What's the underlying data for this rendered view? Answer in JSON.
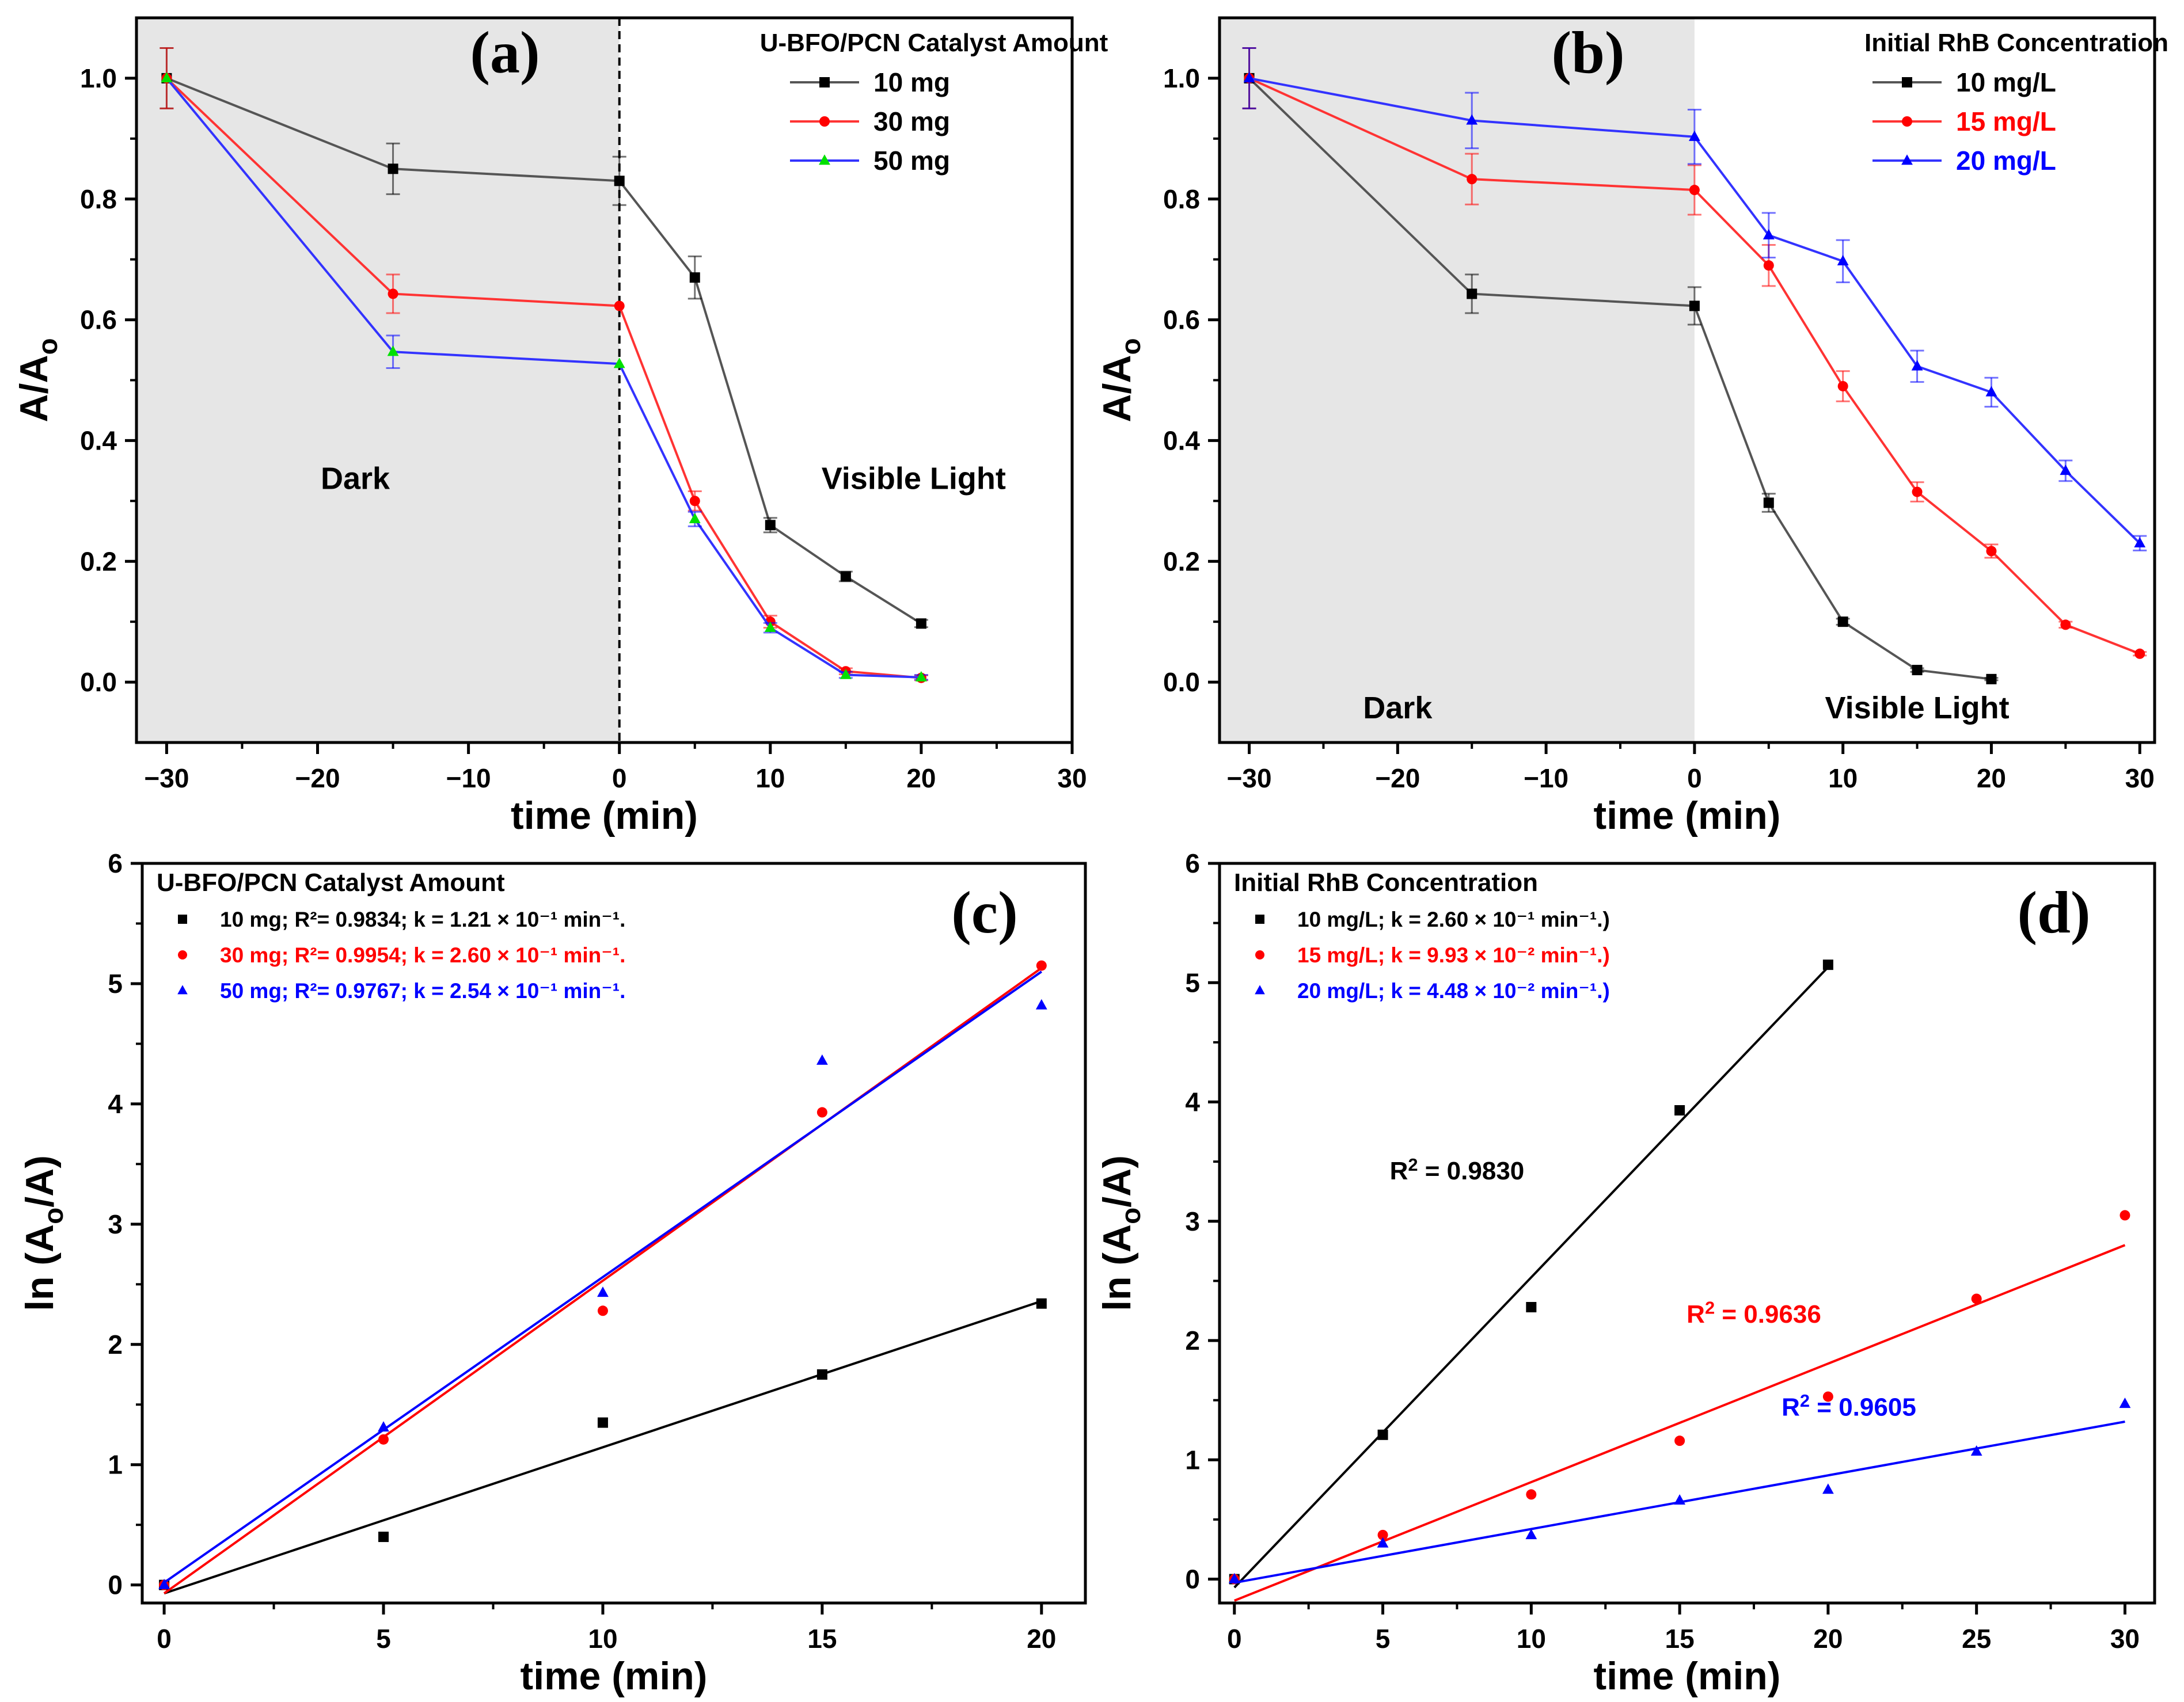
{
  "figure": {
    "colors": {
      "black": "#000000",
      "red": "#ff0000",
      "blue": "#0000ff",
      "green": "#00e000",
      "dark": "#333333",
      "shade": "#e6e6e6"
    }
  },
  "chart_data": [
    {
      "id": "a",
      "type": "line",
      "panel_label": "(a)",
      "xlabel": "time (min)",
      "ylabel": "A/A",
      "ylabel_sub": "o",
      "xlim": [
        -32,
        30
      ],
      "ylim": [
        -0.1,
        1.1
      ],
      "xticks": [
        -30,
        -20,
        -10,
        0,
        10,
        20,
        30
      ],
      "yticks": [
        0.0,
        0.2,
        0.4,
        0.6,
        0.8,
        1.0
      ],
      "xtick_labels": [
        "−30",
        "−20",
        "−10",
        "0",
        "10",
        "20",
        "30"
      ],
      "ytick_labels": [
        "0.0",
        "0.2",
        "0.4",
        "0.6",
        "0.8",
        "1.0"
      ],
      "dark_region": [
        -32,
        0
      ],
      "divider_x": 0,
      "annotations": [
        {
          "text": "Dark",
          "x": -17.5,
          "y": 0.32
        },
        {
          "text": "Visible Light",
          "x": 19.5,
          "y": 0.32
        }
      ],
      "legend": {
        "title": "U-BFO/PCN Catalyst Amount",
        "position": "top-right"
      },
      "series": [
        {
          "name": "10 mg",
          "color": "#000000",
          "line_dark": "#555555",
          "marker": "square",
          "x": [
            -30,
            -15,
            0,
            5,
            10,
            15,
            20
          ],
          "y": [
            1.0,
            0.85,
            0.83,
            0.67,
            0.26,
            0.175,
            0.097
          ],
          "err": [
            0.05,
            0.042,
            0.04,
            0.035,
            0.012,
            0.008,
            0.006
          ]
        },
        {
          "name": "30 mg",
          "color": "#ff0000",
          "line_dark": "#ff3333",
          "marker": "circle",
          "x": [
            -30,
            -15,
            0,
            5,
            10,
            15,
            20
          ],
          "y": [
            1.0,
            0.643,
            0.623,
            0.3,
            0.1,
            0.018,
            0.007
          ],
          "err": [
            0.05,
            0.032,
            0.0,
            0.016,
            0.01,
            0.005,
            0.004
          ]
        },
        {
          "name": "50 mg",
          "color": "#0000ff",
          "line_dark": "#3333ff",
          "marker": "triangle",
          "marker_color": "#00e000",
          "x": [
            -30,
            -15,
            0,
            5,
            10,
            15,
            20
          ],
          "y": [
            1.0,
            0.547,
            0.527,
            0.27,
            0.09,
            0.012,
            0.008
          ],
          "err": [
            0.0,
            0.027,
            0.0,
            0.012,
            0.008,
            0.005,
            0.004
          ]
        }
      ]
    },
    {
      "id": "b",
      "type": "line",
      "panel_label": "(b)",
      "xlabel": "time (min)",
      "ylabel": "A/A",
      "ylabel_sub": "o",
      "xlim": [
        -32,
        31
      ],
      "ylim": [
        -0.1,
        1.1
      ],
      "xticks": [
        -30,
        -20,
        -10,
        0,
        10,
        20,
        30
      ],
      "yticks": [
        0.0,
        0.2,
        0.4,
        0.6,
        0.8,
        1.0
      ],
      "xtick_labels": [
        "−30",
        "−20",
        "−10",
        "0",
        "10",
        "20",
        "30"
      ],
      "ytick_labels": [
        "0.0",
        "0.2",
        "0.4",
        "0.6",
        "0.8",
        "1.0"
      ],
      "dark_region": [
        -32,
        0
      ],
      "annotations": [
        {
          "text": "Dark",
          "x": -20,
          "y": -0.06
        },
        {
          "text": "Visible Light",
          "x": 15,
          "y": -0.06
        }
      ],
      "legend": {
        "title": "Initial RhB Concentration",
        "position": "top-right"
      },
      "series": [
        {
          "name": "10 mg/L",
          "color": "#000000",
          "line_dark": "#555555",
          "marker": "square",
          "x": [
            -30,
            -15,
            0,
            5,
            10,
            15,
            20
          ],
          "y": [
            1.0,
            0.643,
            0.623,
            0.297,
            0.1,
            0.02,
            0.005
          ],
          "err": [
            0.05,
            0.032,
            0.031,
            0.015,
            0.005,
            0.003,
            0.002
          ]
        },
        {
          "name": "15 mg/L",
          "color": "#ff0000",
          "line_dark": "#ff3333",
          "marker": "circle",
          "x": [
            -30,
            -15,
            0,
            5,
            10,
            15,
            20,
            25,
            30
          ],
          "y": [
            1.0,
            0.833,
            0.815,
            0.69,
            0.49,
            0.315,
            0.217,
            0.095,
            0.047
          ],
          "err": [
            0.05,
            0.042,
            0.041,
            0.034,
            0.025,
            0.016,
            0.011,
            0.005,
            0.003
          ]
        },
        {
          "name": "20 mg/L",
          "color": "#0000ff",
          "line_dark": "#3333ff",
          "marker": "triangle",
          "x": [
            -30,
            -15,
            0,
            5,
            10,
            15,
            20,
            25,
            30
          ],
          "y": [
            1.0,
            0.93,
            0.903,
            0.74,
            0.697,
            0.523,
            0.48,
            0.35,
            0.23
          ],
          "err": [
            0.05,
            0.046,
            0.045,
            0.037,
            0.035,
            0.026,
            0.024,
            0.017,
            0.012
          ]
        }
      ]
    },
    {
      "id": "c",
      "type": "scatter",
      "panel_label": "(c)",
      "xlabel": "time (min)",
      "ylabel": "ln (A",
      "ylabel_sub": "o",
      "ylabel_tail": "/A)",
      "xlim": [
        -0.5,
        21
      ],
      "ylim": [
        -0.15,
        6
      ],
      "xticks": [
        0,
        5,
        10,
        15,
        20
      ],
      "yticks": [
        0,
        1,
        2,
        3,
        4,
        5,
        6
      ],
      "xtick_labels": [
        "0",
        "5",
        "10",
        "15",
        "20"
      ],
      "ytick_labels": [
        "0",
        "1",
        "2",
        "3",
        "4",
        "5",
        "6"
      ],
      "legend": {
        "title": "U-BFO/PCN Catalyst Amount",
        "position": "top-left"
      },
      "series": [
        {
          "name": "10 mg",
          "legend_text": "10 mg; R²= 0.9834; k = 1.21 × 10⁻¹ min⁻¹.",
          "color": "#000000",
          "marker": "square",
          "x": [
            0,
            5,
            10,
            15,
            20
          ],
          "y": [
            0.0,
            0.4,
            1.35,
            1.75,
            2.34
          ],
          "fit": [
            [
              0,
              -0.07
            ],
            [
              20,
              2.36
            ]
          ]
        },
        {
          "name": "30 mg",
          "legend_text": "30 mg; R²= 0.9954; k = 2.60 × 10⁻¹ min⁻¹.",
          "color": "#ff0000",
          "marker": "circle",
          "x": [
            0,
            5,
            10,
            15,
            20
          ],
          "y": [
            0.0,
            1.21,
            2.28,
            3.93,
            5.15
          ],
          "fit": [
            [
              0,
              -0.07
            ],
            [
              20,
              5.13
            ]
          ]
        },
        {
          "name": "50 mg",
          "legend_text": "50 mg; R²= 0.9767; k = 2.54 × 10⁻¹ min⁻¹.",
          "color": "#0000ff",
          "marker": "triangle",
          "x": [
            0,
            5,
            10,
            15,
            20
          ],
          "y": [
            0.0,
            1.31,
            2.43,
            4.36,
            4.82
          ],
          "fit": [
            [
              0,
              0.02
            ],
            [
              20,
              5.1
            ]
          ]
        }
      ]
    },
    {
      "id": "d",
      "type": "scatter",
      "panel_label": "(d)",
      "xlabel": "time (min)",
      "ylabel": "ln (A",
      "ylabel_sub": "o",
      "ylabel_tail": "/A)",
      "xlim": [
        -0.5,
        31
      ],
      "ylim": [
        -0.2,
        6
      ],
      "xticks": [
        0,
        5,
        10,
        15,
        20,
        25,
        30
      ],
      "yticks": [
        0,
        1,
        2,
        3,
        4,
        5,
        6
      ],
      "xtick_labels": [
        "0",
        "5",
        "10",
        "15",
        "20",
        "25",
        "30"
      ],
      "ytick_labels": [
        "0",
        "1",
        "2",
        "3",
        "4",
        "5",
        "6"
      ],
      "legend": {
        "title": "Initial RhB Concentration",
        "position": "top-left"
      },
      "annotations": [
        {
          "text": "R",
          "sup": "2",
          "tail": " = 0.9830",
          "color": "#000000",
          "x": 7.5,
          "y": 3.35
        },
        {
          "text": "R",
          "sup": "2",
          "tail": " = 0.9636",
          "color": "#ff0000",
          "x": 17.5,
          "y": 2.15
        },
        {
          "text": "R",
          "sup": "2",
          "tail": " = 0.9605",
          "color": "#0000ff",
          "x": 20.7,
          "y": 1.37
        }
      ],
      "series": [
        {
          "name": "10 mg/L",
          "legend_text": "10 mg/L; k = 2.60 × 10⁻¹ min⁻¹.)",
          "color": "#000000",
          "marker": "square",
          "x": [
            0,
            5,
            10,
            15,
            20
          ],
          "y": [
            0.0,
            1.21,
            2.28,
            3.93,
            5.15
          ],
          "fit": [
            [
              0,
              -0.07
            ],
            [
              20,
              5.13
            ]
          ]
        },
        {
          "name": "15 mg/L",
          "legend_text": "15 mg/L; k = 9.93 × 10⁻² min⁻¹.)",
          "color": "#ff0000",
          "marker": "circle",
          "x": [
            0,
            5,
            10,
            15,
            20,
            25,
            30
          ],
          "y": [
            0.0,
            0.37,
            0.71,
            1.16,
            1.53,
            2.35,
            3.05
          ],
          "fit": [
            [
              0,
              -0.18
            ],
            [
              30,
              2.8
            ]
          ]
        },
        {
          "name": "20 mg/L",
          "legend_text": "20 mg/L; k = 4.48 × 10⁻² min⁻¹.)",
          "color": "#0000ff",
          "marker": "triangle",
          "x": [
            0,
            5,
            10,
            15,
            20,
            25,
            30
          ],
          "y": [
            0.0,
            0.3,
            0.37,
            0.66,
            0.75,
            1.07,
            1.47
          ],
          "fit": [
            [
              0,
              -0.03
            ],
            [
              30,
              1.32
            ]
          ]
        }
      ]
    }
  ]
}
